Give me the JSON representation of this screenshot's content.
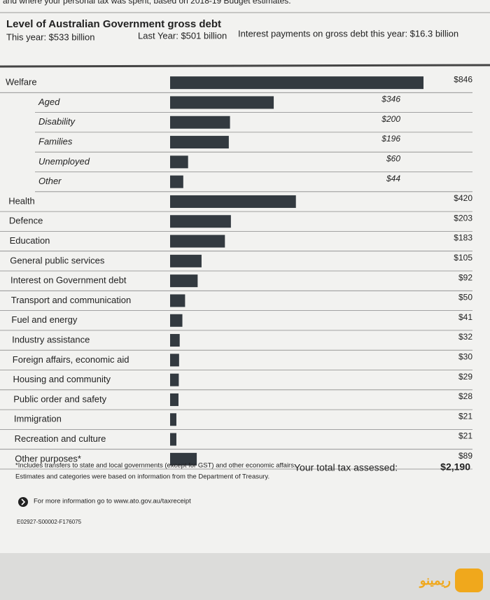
{
  "header": {
    "intro": "and where your personal tax was spent, based on 2018-19 Budget estimates.",
    "debt_title": "Level of Australian Government gross debt",
    "this_year": "This year: $533 billion",
    "last_year": "Last Year: $501 billion",
    "interest": "Interest payments on gross debt this year: $16.3 billion"
  },
  "table": {
    "rows": [
      {
        "label": "Welfare",
        "value": 846,
        "value_label": "$846",
        "breakdown": [
          {
            "label": "Aged",
            "value": 346,
            "value_label": "$346"
          },
          {
            "label": "Disability",
            "value": 200,
            "value_label": "$200"
          },
          {
            "label": "Families",
            "value": 196,
            "value_label": "$196"
          },
          {
            "label": "Unemployed",
            "value": 60,
            "value_label": "$60"
          },
          {
            "label": "Other",
            "value": 44,
            "value_label": "$44"
          }
        ]
      },
      {
        "label": "Health",
        "value": 420,
        "value_label": "$420"
      },
      {
        "label": "Defence",
        "value": 203,
        "value_label": "$203"
      },
      {
        "label": "Education",
        "value": 183,
        "value_label": "$183"
      },
      {
        "label": "General public services",
        "value": 105,
        "value_label": "$105"
      },
      {
        "label": "Interest on Government debt",
        "value": 92,
        "value_label": "$92"
      },
      {
        "label": "Transport and communication",
        "value": 50,
        "value_label": "$50"
      },
      {
        "label": "Fuel and energy",
        "value": 41,
        "value_label": "$41"
      },
      {
        "label": "Industry assistance",
        "value": 32,
        "value_label": "$32"
      },
      {
        "label": "Foreign affairs, economic aid",
        "value": 30,
        "value_label": "$30"
      },
      {
        "label": "Housing and community",
        "value": 29,
        "value_label": "$29"
      },
      {
        "label": "Public order and safety",
        "value": 28,
        "value_label": "$28"
      },
      {
        "label": "Immigration",
        "value": 21,
        "value_label": "$21"
      },
      {
        "label": "Recreation and culture",
        "value": 21,
        "value_label": "$21"
      },
      {
        "label": "Other purposes*",
        "value": 89,
        "value_label": "$89"
      }
    ]
  },
  "footer": {
    "note1": "*Includes transfers to state and local governments (except for GST) and other economic affairs.",
    "note2": "Estimates and categories were based on information from the Department of Treasury.",
    "total_label": "Your total tax assessed:",
    "total_value": "$2,190",
    "more_info": "For more information go to www.ato.gov.au/taxreceipt",
    "code": "E02927-S00002-F176075"
  },
  "watermark": "ریمینو"
}
